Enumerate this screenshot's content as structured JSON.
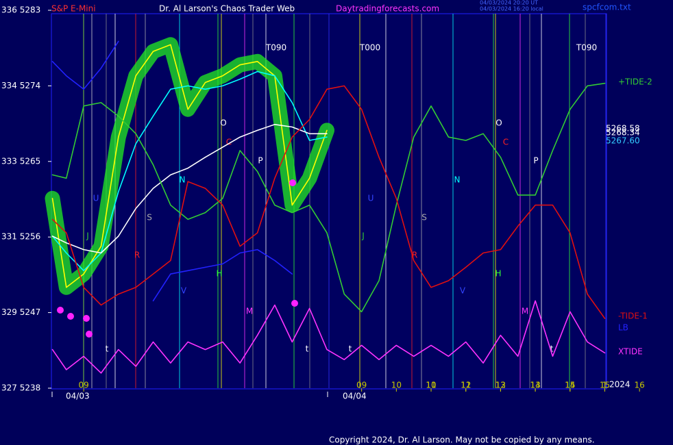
{
  "chart_data": {
    "type": "line",
    "title": "Dr. Al Larson's Chaos Trader Web",
    "instrument": "S&P E-Mini",
    "site": "Daytradingforecasts.com",
    "timestamps": [
      "04/03/2024 20:20 UT",
      "04/03/2024 16:20 local"
    ],
    "file": "spcfcom.txt",
    "copyright": "Copyright 2024, Dr. Al Larson. May not be copied by any means.",
    "year_label": "2024",
    "date_labels": [
      "04/03",
      "04/04"
    ],
    "markers": [
      "U",
      "J",
      "R",
      "S",
      "N",
      "H",
      "V",
      "M",
      "O",
      "C",
      "P",
      "t",
      "t",
      "t",
      "U",
      "J",
      "R",
      "S",
      "N",
      "H",
      "V",
      "M",
      "O",
      "C",
      "P",
      "t",
      "T090",
      "T000",
      "T090"
    ],
    "price_labels": [
      5268.58,
      5268.34,
      {
        "value": 5267.6,
        "label": "5267.60"
      }
    ],
    "x": [
      -0.9,
      -0.5,
      0,
      0.5,
      1,
      1.5,
      2,
      2.5,
      3,
      3.5,
      4,
      4.5,
      5,
      5.5,
      6,
      6.5,
      7,
      7.5,
      8,
      8.5,
      9,
      9.5,
      10,
      10.5,
      11,
      11.5,
      12,
      12.5,
      13,
      13.5,
      14,
      14.5,
      15
    ],
    "xlim": [
      -0.93,
      15.05
    ],
    "xticks": [
      {
        "value": 0,
        "label": "09"
      },
      10,
      11,
      12,
      13,
      14,
      15,
      16,
      {
        "value": 8,
        "label": "09"
      },
      {
        "value": 9,
        "label": "10"
      },
      {
        "value": 10,
        "label": "11"
      },
      {
        "value": 11,
        "label": "12"
      },
      {
        "value": 12,
        "label": "13"
      },
      {
        "value": 13,
        "label": "14"
      },
      {
        "value": 14,
        "label": "15"
      },
      {
        "value": 15,
        "label": "1"
      }
    ],
    "ylim": [
      5238,
      5283
    ],
    "yticks": [
      {
        "value": 5238,
        "label": "327  5238"
      },
      {
        "value": 5247,
        "label": "329  5247"
      },
      {
        "value": 5256,
        "label": "331  5256"
      },
      {
        "value": 5265,
        "label": "333  5265"
      },
      {
        "value": 5274,
        "label": "334  5274"
      },
      {
        "value": 5283,
        "label": "336  5283"
      }
    ],
    "series": [
      {
        "color": "#22ee22",
        "glow": true,
        "values": [
          5260.6,
          5250.0,
          5251.6,
          5254.9,
          5267.9,
          5275.2,
          5278.1,
          5278.9,
          5271.2,
          5274.4,
          5275.2,
          5276.5,
          5276.9,
          5275.2,
          5259.8,
          5263.0,
          5268.7,
          null,
          null,
          null,
          null,
          null,
          null,
          null,
          null,
          null,
          null,
          null,
          null,
          null,
          null,
          null,
          null
        ]
      },
      {
        "color": "#ffff00",
        "values": [
          5260.6,
          5250.0,
          5251.6,
          5254.9,
          5267.9,
          5275.2,
          5278.1,
          5278.9,
          5271.2,
          5274.4,
          5275.2,
          5276.5,
          5276.9,
          5275.2,
          5259.8,
          5263.0,
          5268.7,
          null,
          null,
          null,
          null,
          null,
          null,
          null,
          null,
          null,
          null,
          null,
          null,
          null,
          null,
          null,
          null
        ]
      },
      {
        "color": "#00ffff",
        "values": [
          5256.1,
          5254.1,
          5252.0,
          5254.1,
          5261.4,
          5267.1,
          5270.4,
          5273.6,
          5274.0,
          5273.6,
          5274.0,
          5274.8,
          5275.7,
          5275.2,
          5272.0,
          5267.5,
          5267.9,
          null,
          null,
          null,
          null,
          null,
          null,
          null,
          null,
          null,
          null,
          null,
          null,
          null,
          null,
          null,
          null
        ]
      },
      {
        "color": "#ffffff",
        "values": [
          5256.1,
          5255.3,
          5254.5,
          5254.1,
          5256.1,
          5259.4,
          5261.8,
          5263.4,
          5264.2,
          5265.5,
          5266.7,
          5267.9,
          5268.7,
          5269.4,
          5269.1,
          5268.3,
          5268.3,
          null,
          null,
          null,
          null,
          null,
          null,
          null,
          null,
          null,
          null,
          null,
          null,
          null,
          null,
          null,
          null
        ]
      },
      {
        "name": "+TIDE-2",
        "color": "#33cc33",
        "values": [
          5263.4,
          5263.0,
          5271.6,
          5272.0,
          5270.4,
          5268.3,
          5264.6,
          5259.8,
          5258.1,
          5258.9,
          5260.6,
          5266.3,
          5263.8,
          5259.8,
          5258.9,
          5259.8,
          5256.5,
          5249.2,
          5247.1,
          5250.8,
          5259.8,
          5267.9,
          5271.6,
          5267.9,
          5267.5,
          5268.3,
          5265.5,
          5261.0,
          5261.0,
          5266.3,
          5271.2,
          5274.0,
          5274.3
        ]
      },
      {
        "name": "-TIDE-1",
        "color": "#e01010",
        "values": [
          5258.1,
          5256.5,
          5250.0,
          5247.9,
          5249.2,
          5250.0,
          5251.6,
          5253.2,
          5262.6,
          5261.8,
          5259.8,
          5254.9,
          5256.5,
          5263.0,
          5267.9,
          5270.0,
          5273.6,
          5274.0,
          5271.2,
          5265.5,
          5260.6,
          5253.2,
          5250.0,
          5250.8,
          5252.4,
          5254.1,
          5254.5,
          5257.3,
          5259.8,
          5259.8,
          5256.5,
          5249.2,
          5246.3
        ]
      },
      {
        "name": "LB",
        "color": "#2222ff",
        "values": [
          5276.9,
          5275.2,
          5273.6,
          5276.1,
          5279.3,
          null,
          5248.4,
          5251.6,
          5252.0,
          5252.4,
          5252.8,
          5254.1,
          5254.5,
          5253.2,
          5251.6,
          null,
          null,
          null,
          null,
          null,
          null,
          null,
          null,
          null,
          null,
          null,
          null,
          null,
          null,
          null,
          null,
          null,
          null
        ]
      },
      {
        "name": "XTIDE",
        "color": "#ff33ff",
        "values": [
          5242.6,
          5240.2,
          5241.8,
          5239.8,
          5242.6,
          5240.6,
          5243.5,
          5241.0,
          5243.5,
          5242.6,
          5243.5,
          5241.0,
          5244.3,
          5247.9,
          5243.5,
          5247.5,
          5242.6,
          5241.4,
          5243.1,
          5241.4,
          5243.1,
          5241.8,
          5243.1,
          5241.8,
          5243.5,
          5241.0,
          5244.3,
          5241.8,
          5248.4,
          5241.8,
          5247.1,
          5243.5,
          5242.2
        ]
      }
    ]
  }
}
